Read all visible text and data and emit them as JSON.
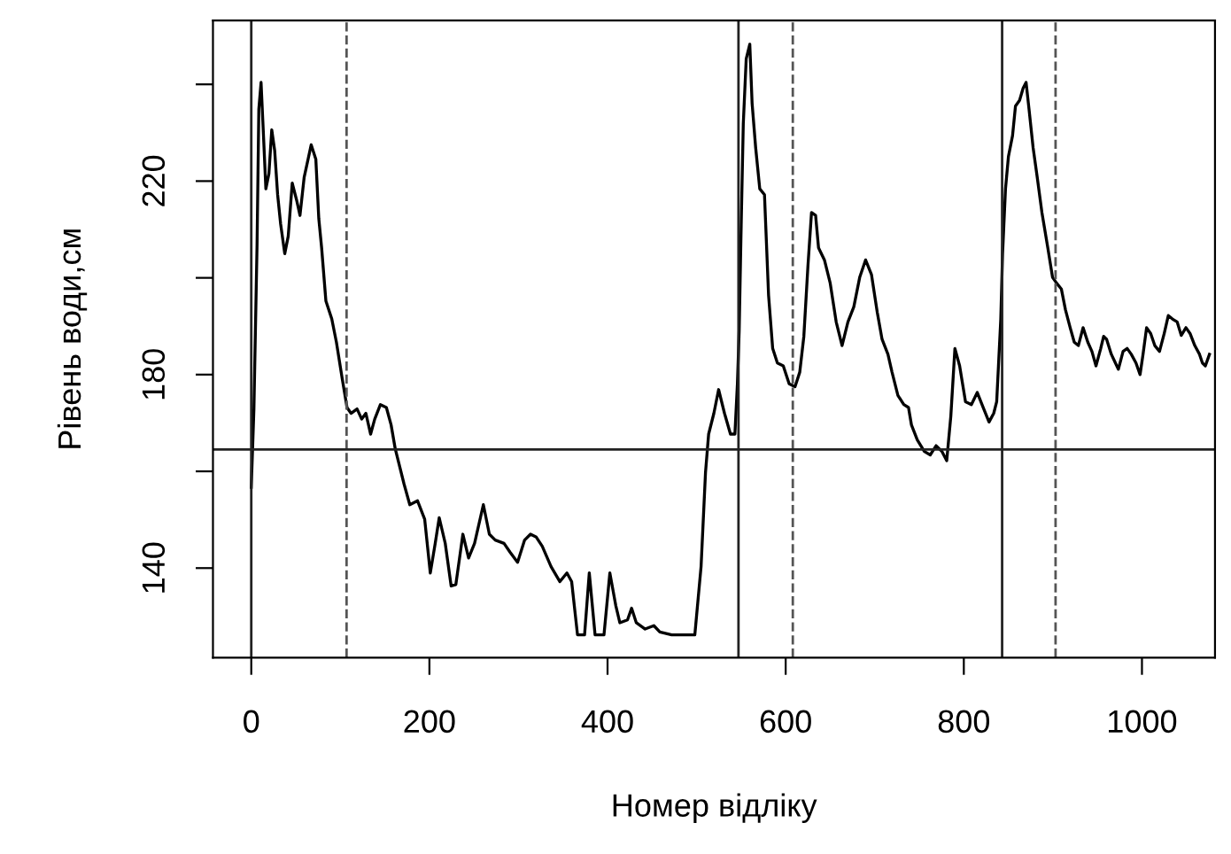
{
  "chart_data": {
    "type": "line",
    "xlabel": "Номер відліку",
    "ylabel": "Рівень води,см",
    "xlim": [
      -43,
      1082
    ],
    "ylim": [
      121.5,
      253.2
    ],
    "xticks": [
      0,
      200,
      400,
      600,
      800,
      1000
    ],
    "yticks": [
      {
        "value": 140,
        "label": "140"
      },
      {
        "value": 160,
        "label": null
      },
      {
        "value": 180,
        "label": "180"
      },
      {
        "value": 200,
        "label": null
      },
      {
        "value": 220,
        "label": "220"
      },
      {
        "value": 240,
        "label": null
      }
    ],
    "grid": false,
    "legend": false,
    "line_style": "solid",
    "marker": "none",
    "ref_lines": [
      {
        "axis": "x",
        "value": 0,
        "color": "#222222",
        "line_style": "solid"
      },
      {
        "axis": "x",
        "value": 547,
        "color": "#222222",
        "line_style": "solid"
      },
      {
        "axis": "x",
        "value": 843,
        "color": "#222222",
        "line_style": "solid"
      },
      {
        "axis": "x",
        "value": 107,
        "color": "#555555",
        "line_style": "dashed"
      },
      {
        "axis": "x",
        "value": 608,
        "color": "#555555",
        "line_style": "dashed"
      },
      {
        "axis": "x",
        "value": 903,
        "color": "#555555",
        "line_style": "dashed"
      },
      {
        "axis": "y",
        "value": 164.5,
        "color": "#222222",
        "line_style": "solid"
      }
    ],
    "series": [
      {
        "color": "#000000",
        "x": [
          0,
          3,
          6.5,
          8.5,
          11,
          13,
          16.4,
          19.8,
          23,
          26.3,
          29.6,
          33,
          37.6,
          41.5,
          46,
          51,
          54.7,
          59.4,
          67.3,
          72.5,
          75.8,
          79,
          83.8,
          90.4,
          95.6,
          102,
          107.5,
          112,
          118.8,
          124,
          128.7,
          134,
          138.6,
          145,
          151.7,
          157,
          161.6,
          171.5,
          178,
          186.7,
          194.7,
          201,
          206.5,
          211,
          217.8,
          224.4,
          229.7,
          237.6,
          244,
          250.7,
          260.6,
          267.3,
          273.9,
          283.8,
          290.5,
          299,
          306.9,
          313.5,
          320,
          326.7,
          336.6,
          346.5,
          354.4,
          359.7,
          366.3,
          374.2,
          379.5,
          386,
          396,
          402.6,
          409.2,
          413.8,
          422.4,
          427,
          432.3,
          442.2,
          452,
          458.7,
          472,
          485,
          498,
          505,
          510,
          513.5,
          519.4,
          524.7,
          531.3,
          538,
          543,
          545.8,
          547.8,
          549.8,
          552.4,
          555.7,
          559.7,
          562.3,
          566.3,
          570.9,
          576.2,
          580.8,
          585.4,
          590.7,
          597.3,
          603.9,
          610.5,
          615.8,
          620.4,
          625,
          629,
          633.6,
          636.9,
          643.5,
          650,
          656.7,
          663.3,
          669.9,
          676.5,
          683.1,
          689.7,
          696.3,
          702.9,
          708.2,
          714.8,
          719.4,
          726,
          732.6,
          737.9,
          741.2,
          747.8,
          755.7,
          762.3,
          768.9,
          775.5,
          780.8,
          785.4,
          790,
          795.3,
          801.9,
          808.5,
          815.1,
          821.7,
          828.3,
          833.6,
          836.9,
          838.9,
          841.5,
          843.5,
          846.8,
          850.1,
          854.7,
          858,
          862.6,
          866.6,
          869.9,
          873.2,
          877.8,
          882.4,
          887.7,
          894.3,
          899.6,
          904.2,
          909.5,
          914.1,
          919.4,
          924,
          928.6,
          933.9,
          939.2,
          943.8,
          948.4,
          953.7,
          957,
          960.3,
          965.6,
          970.2,
          973.5,
          978.8,
          983.4,
          988,
          993.3,
          997.9,
          1001.2,
          1005.2,
          1009.8,
          1014.4,
          1019.7,
          1025,
          1029.6,
          1034.2,
          1039.5,
          1044.1,
          1049.4,
          1054,
          1059.3,
          1064.6,
          1067.9,
          1071.2,
          1075.8
        ],
        "values": [
          156.7,
          173,
          206.8,
          234.9,
          240.4,
          232.4,
          218.4,
          221.5,
          230.6,
          226.3,
          217.2,
          211.1,
          205,
          208.6,
          219.6,
          216,
          212.9,
          220.8,
          227.5,
          224.5,
          212.3,
          206.2,
          195.2,
          191.5,
          186.7,
          179.3,
          173.2,
          172,
          172.9,
          170.8,
          172,
          167.7,
          170.8,
          173.8,
          173.2,
          169.6,
          164.7,
          157.4,
          153.1,
          153.9,
          150.1,
          139,
          145.1,
          150.4,
          145.1,
          136.3,
          136.6,
          147,
          142.1,
          145.1,
          153.1,
          147,
          145.8,
          145.1,
          143.3,
          141.2,
          145.8,
          147,
          146.4,
          144.5,
          140.3,
          137.2,
          139,
          137.2,
          126.2,
          126.2,
          139,
          126.2,
          126.2,
          139,
          132.3,
          128.7,
          129.3,
          131.7,
          128.7,
          127.4,
          128.1,
          126.8,
          126.2,
          126.2,
          126.2,
          140.3,
          159.8,
          167.7,
          172,
          176.9,
          172,
          167.7,
          167.7,
          178.1,
          189.1,
          208.6,
          231.8,
          245.3,
          248.3,
          236.1,
          226.9,
          218.4,
          217.2,
          196.4,
          185.4,
          182.4,
          181.8,
          178.1,
          177.5,
          180.5,
          187.9,
          202.5,
          213.5,
          212.9,
          206.2,
          203.7,
          198.9,
          190.9,
          186,
          190.9,
          194,
          200.1,
          203.7,
          200.7,
          192.8,
          187.3,
          184.2,
          180.5,
          175.7,
          173.8,
          173.2,
          169.6,
          166.5,
          164.1,
          163.4,
          165.3,
          164.1,
          162.2,
          171.4,
          185.4,
          181.8,
          174.4,
          173.8,
          176.3,
          173.2,
          170.2,
          172,
          174.4,
          181.8,
          191.5,
          205,
          218.4,
          225.1,
          229.4,
          235.5,
          236.7,
          239.2,
          240.4,
          234.9,
          226.9,
          220.8,
          213.5,
          206.2,
          200.1,
          198.9,
          197.7,
          193.4,
          189.7,
          186.7,
          186,
          189.7,
          186.7,
          184.8,
          181.8,
          185.4,
          187.9,
          187.3,
          184.2,
          182.4,
          181.1,
          184.8,
          185.4,
          184.2,
          182.4,
          180,
          184.2,
          189.7,
          188.5,
          186,
          184.8,
          188.5,
          192.2,
          191.5,
          190.9,
          188.1,
          189.7,
          188.5,
          186,
          184.2,
          182.4,
          181.8,
          184.2
        ]
      }
    ]
  }
}
